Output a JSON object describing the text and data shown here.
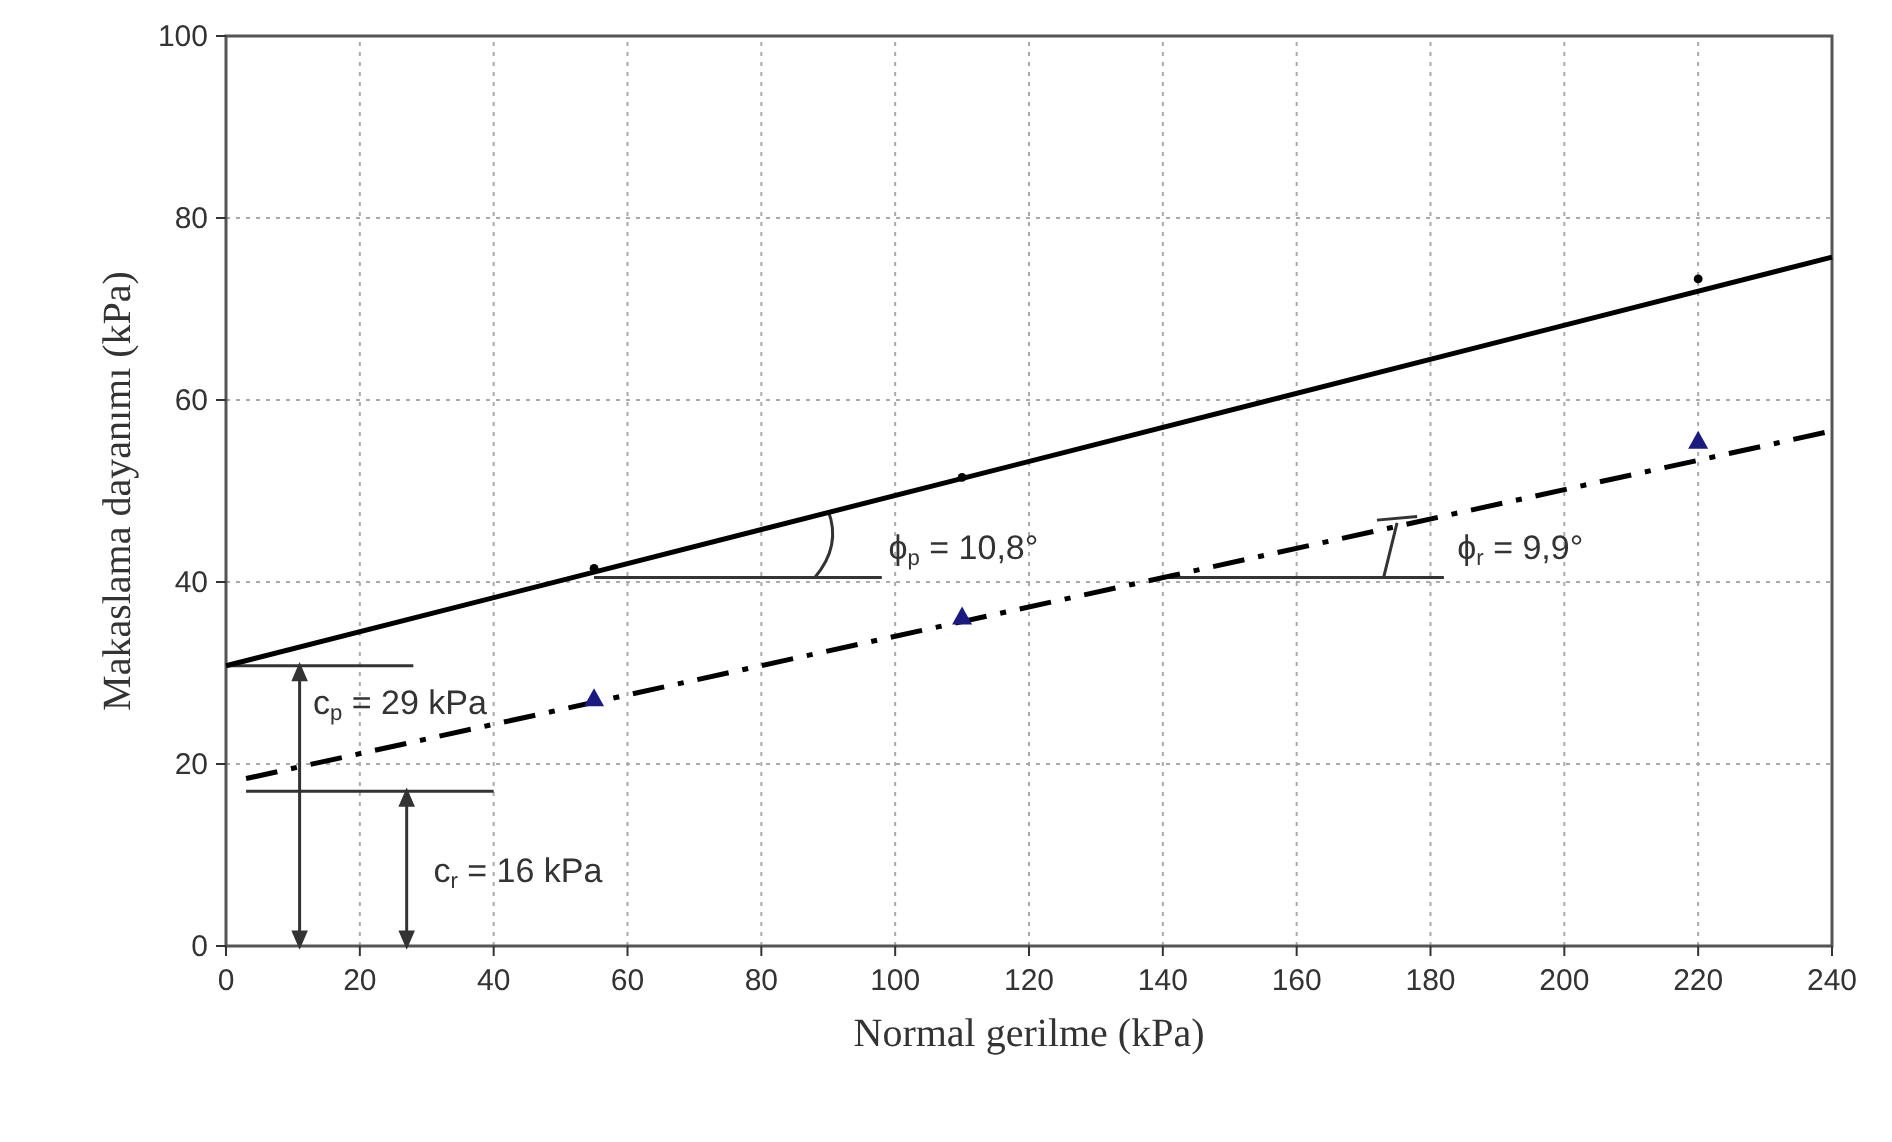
{
  "chart_data": {
    "type": "scatter",
    "xlabel": "Normal gerilme (kPa)",
    "ylabel": "Makaslama dayanımı (kPa)",
    "series": [
      {
        "type": "line",
        "color": "#000000",
        "x": [
          0,
          240
        ],
        "values": [
          30.8,
          75.7
        ],
        "line_style": "solid",
        "marker": "none"
      },
      {
        "type": "line",
        "color": "#000000",
        "x": [
          3,
          240
        ],
        "values": [
          18.4,
          56.6
        ],
        "line_style": "dashed",
        "marker": "none"
      },
      {
        "type": "scatter",
        "color": "#000000",
        "x": [
          55,
          110,
          220
        ],
        "values": [
          41.5,
          51.5,
          73.3
        ],
        "marker": "circle"
      },
      {
        "color": "#1a1a80",
        "x": [
          55,
          110,
          220
        ],
        "values": [
          27,
          36,
          55.3
        ],
        "marker": "triangle"
      }
    ],
    "xlim": [
      0,
      240
    ],
    "xticks": [
      0,
      20,
      40,
      60,
      80,
      100,
      120,
      140,
      160,
      180,
      200,
      220,
      240
    ],
    "ylim": [
      0,
      100
    ],
    "yticks": [
      0,
      20,
      40,
      60,
      80,
      100
    ],
    "grid": true,
    "annotations": [
      {
        "text": "ϕ$_{p}$ = 10,8°",
        "x": 55,
        "y": 40.5
      },
      {
        "text": "ϕ$_{r}$ = 9,9°",
        "x": 140,
        "y": 40.5
      },
      {
        "text": "c$_{p}$ = 29 kPa",
        "x": 0,
        "y": 30.8
      },
      "c$_{r}$ = 16 kPa"
    ]
  }
}
